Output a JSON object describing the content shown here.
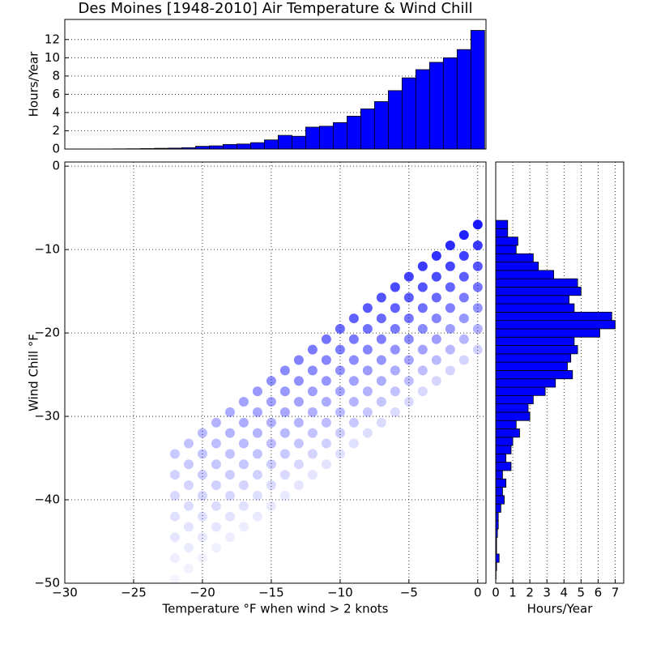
{
  "chart_data": [
    {
      "type": "histogram",
      "orientation": "vertical",
      "title": "Des Moines [1948-2010] Air Temperature & Wind Chill",
      "ylabel": "Hours/Year",
      "bins": [
        -29.5,
        -28.5,
        -27.5,
        -26.5,
        -25.5,
        -24.5,
        -23.5,
        -22.5,
        -21.5,
        -20.5,
        -19.5,
        -18.5,
        -17.5,
        -16.5,
        -15.5,
        -14.5,
        -13.5,
        -12.5,
        -11.5,
        -10.5,
        -9.5,
        -8.5,
        -7.5,
        -6.5,
        -5.5,
        -4.5,
        -3.5,
        -2.5,
        -1.5,
        -0.5,
        0.5
      ],
      "values": [
        0,
        0,
        0.01,
        0.02,
        0.03,
        0.05,
        0.08,
        0.1,
        0.15,
        0.3,
        0.35,
        0.5,
        0.55,
        0.7,
        1.0,
        1.5,
        1.4,
        2.4,
        2.5,
        2.9,
        3.6,
        4.4,
        5.2,
        6.4,
        7.8,
        8.7,
        9.5,
        10.0,
        10.9,
        13.0
      ],
      "color": "#0000ff",
      "xlim": [
        -30,
        0.6
      ],
      "ylim": [
        0,
        14.2
      ],
      "yticks": [
        0,
        2,
        4,
        6,
        8,
        10,
        12
      ],
      "grid": true
    },
    {
      "type": "scatter",
      "xlabel": "Temperature °F when wind > 2 knots",
      "ylabel": "Wind Chill °F",
      "color": "#0000ff",
      "x": [
        0,
        0,
        0,
        0,
        0,
        0,
        0,
        -1,
        -1,
        -1,
        -1,
        -1,
        -1,
        -1,
        -2,
        -2,
        -2,
        -2,
        -2,
        -2,
        -2,
        -3,
        -3,
        -3,
        -3,
        -3,
        -3,
        -3,
        -4,
        -4,
        -4,
        -4,
        -4,
        -4,
        -4,
        -5,
        -5,
        -5,
        -5,
        -5,
        -5,
        -5,
        -6,
        -6,
        -6,
        -6,
        -6,
        -6,
        -6,
        -7,
        -7,
        -7,
        -7,
        -7,
        -7,
        -7,
        -8,
        -8,
        -8,
        -8,
        -8,
        -8,
        -8,
        -9,
        -9,
        -9,
        -9,
        -9,
        -9,
        -9,
        -10,
        -10,
        -10,
        -10,
        -10,
        -10,
        -10,
        -11,
        -11,
        -11,
        -11,
        -11,
        -11,
        -11,
        -12,
        -12,
        -12,
        -12,
        -12,
        -12,
        -12,
        -13,
        -13,
        -13,
        -13,
        -13,
        -13,
        -13,
        -14,
        -14,
        -14,
        -14,
        -14,
        -14,
        -14,
        -15,
        -15,
        -15,
        -15,
        -15,
        -15,
        -15,
        -16,
        -16,
        -16,
        -16,
        -16,
        -16,
        -16,
        -17,
        -17,
        -17,
        -17,
        -17,
        -17,
        -17,
        -18,
        -18,
        -18,
        -18,
        -18,
        -18,
        -18,
        -19,
        -19,
        -19,
        -19,
        -19,
        -19,
        -19,
        -20,
        -20,
        -20,
        -20,
        -20,
        -20,
        -20,
        -21,
        -21,
        -21,
        -21,
        -21,
        -21,
        -21,
        -22,
        -22,
        -22,
        -22,
        -22,
        -22,
        -22
      ],
      "y": [
        -7,
        -9.5,
        -12,
        -14.5,
        -17,
        -19.5,
        -22,
        -8.25,
        -10.75,
        -13.25,
        -15.75,
        -18.25,
        -20.75,
        -23.25,
        -9.5,
        -12,
        -14.5,
        -17,
        -19.5,
        -22,
        -24.5,
        -10.75,
        -13.25,
        -15.75,
        -18.25,
        -20.75,
        -23.25,
        -25.75,
        -12,
        -14.5,
        -17,
        -19.5,
        -22,
        -24.5,
        -27,
        -13.25,
        -15.75,
        -18.25,
        -20.75,
        -23.25,
        -25.75,
        -28.25,
        -14.5,
        -17,
        -19.5,
        -22,
        -24.5,
        -27,
        -29.5,
        -15.75,
        -18.25,
        -20.75,
        -23.25,
        -25.75,
        -28.25,
        -30.75,
        -17,
        -19.5,
        -22,
        -24.5,
        -27,
        -29.5,
        -32,
        -18.25,
        -20.75,
        -23.25,
        -25.75,
        -28.25,
        -30.75,
        -33.25,
        -19.5,
        -22,
        -24.5,
        -27,
        -29.5,
        -32,
        -34.5,
        -20.75,
        -23.25,
        -25.75,
        -28.25,
        -30.75,
        -33.25,
        -35.75,
        -22,
        -24.5,
        -27,
        -29.5,
        -32,
        -34.5,
        -37,
        -23.25,
        -25.75,
        -28.25,
        -30.75,
        -33.25,
        -35.75,
        -38.25,
        -24.5,
        -27,
        -29.5,
        -32,
        -34.5,
        -37,
        -39.5,
        -25.75,
        -28.25,
        -30.75,
        -33.25,
        -35.75,
        -38.25,
        -40.75,
        -27,
        -29.5,
        -32,
        -34.5,
        -37,
        -39.5,
        -42,
        -28.25,
        -30.75,
        -33.25,
        -35.75,
        -38.25,
        -40.75,
        -43.25,
        -29.5,
        -32,
        -34.5,
        -37,
        -39.5,
        -42,
        -44.5,
        -30.75,
        -33.25,
        -35.75,
        -38.25,
        -40.75,
        -43.25,
        -45.75,
        -32,
        -34.5,
        -37,
        -39.5,
        -42,
        -44.5,
        -47,
        -33.25,
        -35.75,
        -38.25,
        -40.75,
        -43.25,
        -45.75,
        -48.25,
        -34.5,
        -37,
        -39.5,
        -42,
        -44.5,
        -47,
        -49.5
      ],
      "alpha": [
        0.9,
        0.78,
        0.66,
        0.54,
        0.42,
        0.3,
        0.18,
        0.87,
        0.75,
        0.64,
        0.52,
        0.41,
        0.29,
        0.17,
        0.84,
        0.73,
        0.61,
        0.5,
        0.39,
        0.28,
        0.17,
        0.81,
        0.7,
        0.59,
        0.48,
        0.38,
        0.27,
        0.16,
        0.77,
        0.67,
        0.57,
        0.46,
        0.36,
        0.26,
        0.15,
        0.74,
        0.64,
        0.54,
        0.45,
        0.35,
        0.25,
        0.15,
        0.71,
        0.62,
        0.52,
        0.43,
        0.33,
        0.24,
        0.14,
        0.68,
        0.59,
        0.5,
        0.41,
        0.32,
        0.23,
        0.14,
        0.65,
        0.56,
        0.48,
        0.39,
        0.3,
        0.22,
        0.13,
        0.62,
        0.53,
        0.45,
        0.37,
        0.29,
        0.21,
        0.12,
        0.59,
        0.51,
        0.43,
        0.35,
        0.27,
        0.2,
        0.12,
        0.55,
        0.48,
        0.41,
        0.33,
        0.26,
        0.18,
        0.11,
        0.52,
        0.45,
        0.38,
        0.31,
        0.24,
        0.17,
        0.1,
        0.49,
        0.43,
        0.36,
        0.29,
        0.23,
        0.16,
        0.1,
        0.46,
        0.4,
        0.34,
        0.28,
        0.21,
        0.15,
        0.09,
        0.43,
        0.37,
        0.31,
        0.26,
        0.2,
        0.14,
        0.09,
        0.4,
        0.34,
        0.29,
        0.24,
        0.18,
        0.13,
        0.08,
        0.36,
        0.32,
        0.27,
        0.22,
        0.17,
        0.12,
        0.07,
        0.33,
        0.29,
        0.24,
        0.2,
        0.16,
        0.11,
        0.07,
        0.3,
        0.26,
        0.22,
        0.18,
        0.14,
        0.1,
        0.06,
        0.27,
        0.23,
        0.2,
        0.16,
        0.13,
        0.09,
        0.05,
        0.24,
        0.21,
        0.17,
        0.14,
        0.11,
        0.08,
        0.05,
        0.21,
        0.18,
        0.15,
        0.12,
        0.1,
        0.07,
        0.04
      ],
      "xlim": [
        -30,
        0.6
      ],
      "ylim": [
        -50,
        0.5
      ],
      "xticks": [
        {
          "value": -30,
          "label": "−30"
        },
        {
          "value": -25,
          "label": "−25"
        },
        {
          "value": -20,
          "label": "−20"
        },
        {
          "value": -15,
          "label": "−15"
        },
        {
          "value": -10,
          "label": "−10"
        },
        {
          "value": -5,
          "label": "−5"
        },
        0
      ],
      "yticks": [
        {
          "value": -50,
          "label": "−50"
        },
        {
          "value": -40,
          "label": "−40"
        },
        {
          "value": -30,
          "label": "−30"
        },
        {
          "value": -20,
          "label": "−20"
        },
        {
          "value": -10,
          "label": "−10"
        },
        0
      ],
      "grid": true
    },
    {
      "type": "histogram",
      "orientation": "horizontal",
      "xlabel": "Hours/Year",
      "bins": [
        -49.5,
        -48.5,
        -47.5,
        -46.5,
        -45.5,
        -44.5,
        -43.5,
        -42.5,
        -41.5,
        -40.5,
        -39.5,
        -38.5,
        -37.5,
        -36.5,
        -35.5,
        -34.5,
        -33.5,
        -32.5,
        -31.5,
        -30.5,
        -29.5,
        -28.5,
        -27.5,
        -26.5,
        -25.5,
        -24.5,
        -23.5,
        -22.5,
        -21.5,
        -20.5,
        -19.5,
        -18.5,
        -17.5,
        -16.5,
        -15.5,
        -14.5,
        -13.5,
        -12.5,
        -11.5,
        -10.5,
        -9.5,
        -8.5,
        -7.5,
        -6.5
      ],
      "values": [
        0.02,
        0.05,
        0.2,
        0.05,
        0.05,
        0.1,
        0.15,
        0.15,
        0.3,
        0.5,
        0.4,
        0.6,
        0.4,
        0.9,
        0.6,
        0.9,
        1.0,
        1.4,
        1.2,
        2.0,
        1.9,
        2.2,
        2.9,
        3.5,
        4.5,
        4.2,
        4.4,
        4.8,
        4.6,
        6.1,
        7.0,
        6.8,
        4.6,
        4.3,
        5.0,
        4.8,
        3.4,
        2.5,
        2.2,
        1.2,
        1.3,
        0.7,
        0.7
      ],
      "color": "#0000ff",
      "xlim": [
        0,
        7.5
      ],
      "ylim": [
        -50,
        0.5
      ],
      "xticks": [
        0,
        1,
        2,
        3,
        4,
        5,
        6,
        7
      ],
      "grid": true
    }
  ]
}
